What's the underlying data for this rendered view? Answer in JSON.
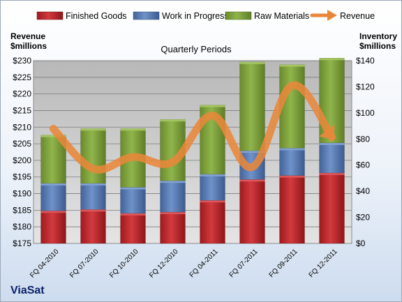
{
  "chart_data": {
    "type": "bar",
    "stacked": true,
    "title": "Quarterly Periods",
    "company": "ViaSat",
    "categories": [
      "FQ 04-2010",
      "FQ 07-2010",
      "FQ 10-2010",
      "FQ 12-2010",
      "FQ 04-2011",
      "FQ 07-2011",
      "FQ 09-2011",
      "FQ 12-2011"
    ],
    "left_axis": {
      "label_line1": "Revenue",
      "label_line2": "$millions",
      "range": [
        175,
        230
      ],
      "step": 5,
      "tick_labels": [
        "$175",
        "$180",
        "$185",
        "$190",
        "$195",
        "$200",
        "$205",
        "$210",
        "$215",
        "$220",
        "$225",
        "$230"
      ]
    },
    "right_axis": {
      "label_line1": "Inventory",
      "label_line2": "$millions",
      "range": [
        0,
        140
      ],
      "step": 20,
      "tick_labels": [
        "$0",
        "$20",
        "$40",
        "$60",
        "$80",
        "$100",
        "$120",
        "$140"
      ]
    },
    "grid": true,
    "legend_position": "top",
    "series": [
      {
        "name": "Finished Goods",
        "axis": "right",
        "color": "#c0282d",
        "values": [
          25,
          26,
          23,
          24,
          33,
          49,
          52,
          54
        ]
      },
      {
        "name": "Work in Progress",
        "axis": "right",
        "color": "#5a7db8",
        "values": [
          21,
          20,
          20,
          24,
          20,
          22,
          21,
          23
        ]
      },
      {
        "name": "Raw Materials",
        "axis": "right",
        "color": "#7fa23c",
        "values": [
          37,
          42,
          45,
          47,
          53,
          68,
          64,
          65
        ]
      },
      {
        "name": "Revenue",
        "axis": "left",
        "type": "line",
        "color": "#e8873a",
        "values": [
          209.5,
          197.5,
          201.0,
          199.5,
          213.5,
          198.0,
          222.5,
          207.0
        ]
      }
    ]
  }
}
